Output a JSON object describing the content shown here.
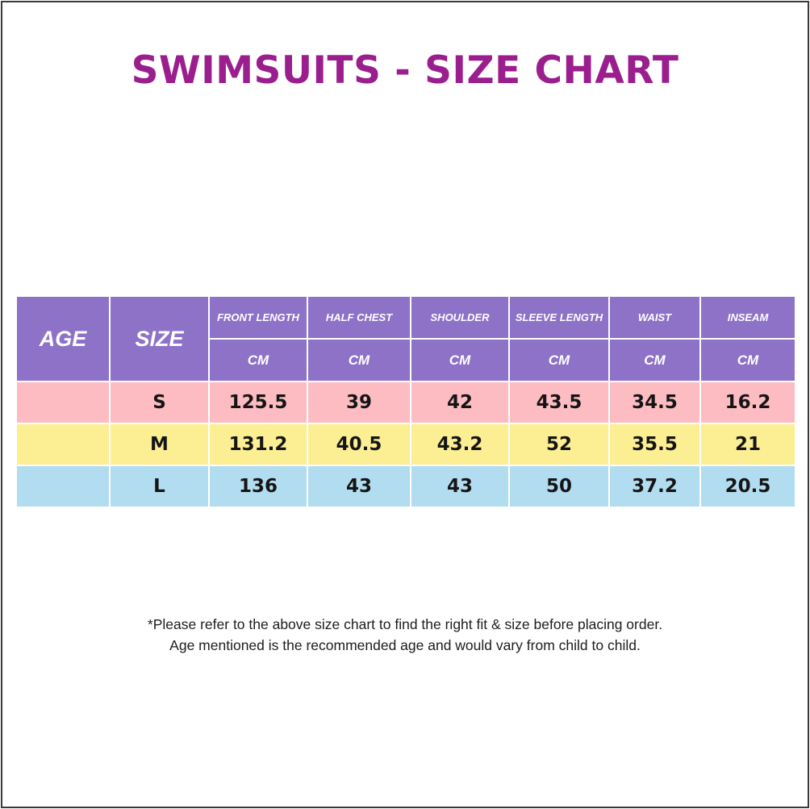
{
  "title": "SWIMSUITS - SIZE CHART",
  "header": {
    "age": "AGE",
    "size": "SIZE",
    "columns": [
      {
        "label": "FRONT LENGTH",
        "unit": "CM"
      },
      {
        "label": "HALF CHEST",
        "unit": "CM"
      },
      {
        "label": "SHOULDER",
        "unit": "CM"
      },
      {
        "label": "SLEEVE LENGTH",
        "unit": "CM"
      },
      {
        "label": "WAIST",
        "unit": "CM"
      },
      {
        "label": "INSEAM",
        "unit": "CM"
      }
    ]
  },
  "rows": [
    {
      "age": "",
      "size": "S",
      "values": [
        "125.5",
        "39",
        "42",
        "43.5",
        "34.5",
        "16.2"
      ]
    },
    {
      "age": "",
      "size": "M",
      "values": [
        "131.2",
        "40.5",
        "43.2",
        "52",
        "35.5",
        "21"
      ]
    },
    {
      "age": "",
      "size": "L",
      "values": [
        "136",
        "43",
        "43",
        "50",
        "37.2",
        "20.5"
      ]
    }
  ],
  "colors": {
    "title": "#9b1e8e",
    "header_bg": "#8d72c8",
    "row_s": "#fcbcc2",
    "row_m": "#fbee93",
    "row_l": "#b2dcf0"
  },
  "notes": [
    "*Please refer to the above size chart to find the right fit & size before placing order.",
    "Age mentioned is the recommended age and would vary from child to child."
  ]
}
